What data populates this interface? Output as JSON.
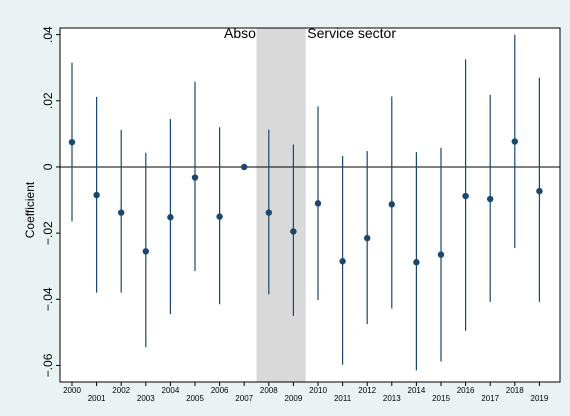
{
  "chart_data": {
    "type": "scatter",
    "title": "Absorbed on Service sector",
    "ylabel": "Coefficient",
    "xlabel": "",
    "ylim": [
      -0.065,
      0.042
    ],
    "y_ticks": [
      0.04,
      0.02,
      0,
      -0.02,
      -0.04,
      -0.06
    ],
    "y_tick_labels": [
      ".04",
      ".02",
      "0",
      "−.02",
      "−.04",
      "−.06"
    ],
    "categories": [
      "2000",
      "2001",
      "2002",
      "2003",
      "2004",
      "2005",
      "2006",
      "2007",
      "2008",
      "2009",
      "2010",
      "2011",
      "2012",
      "2013",
      "2014",
      "2015",
      "2016",
      "2017",
      "2018",
      "2019"
    ],
    "estimates": [
      0.0075,
      -0.0085,
      -0.0138,
      -0.0255,
      -0.0152,
      -0.0032,
      -0.015,
      0.0,
      -0.0138,
      -0.0195,
      -0.011,
      -0.0285,
      -0.0215,
      -0.0113,
      -0.0288,
      -0.0265,
      -0.0088,
      -0.0097,
      0.0077,
      -0.0073
    ],
    "ci_upper": [
      0.0315,
      0.0212,
      0.0112,
      0.0043,
      0.0145,
      0.0258,
      0.012,
      0.0,
      0.0113,
      0.0068,
      0.0183,
      0.0033,
      0.0048,
      0.0213,
      0.0045,
      0.0058,
      0.0325,
      0.0218,
      0.04,
      0.027
    ],
    "ci_lower": [
      -0.0165,
      -0.038,
      -0.038,
      -0.0545,
      -0.0445,
      -0.0315,
      -0.0415,
      0.0,
      -0.0385,
      -0.045,
      -0.0402,
      -0.0598,
      -0.0475,
      -0.0428,
      -0.0615,
      -0.0588,
      -0.0495,
      -0.0408,
      -0.0245,
      -0.0408
    ],
    "shaded_categories": [
      "2008",
      "2009"
    ],
    "grid": false,
    "legend": "none",
    "colors": {
      "figure_background": "#eaf2f3",
      "plot_background": "#ffffff",
      "marker": "#1a476f",
      "ci_line": "#1a476f",
      "shading": "#d9d9d9",
      "zero_line": "#000000"
    }
  }
}
